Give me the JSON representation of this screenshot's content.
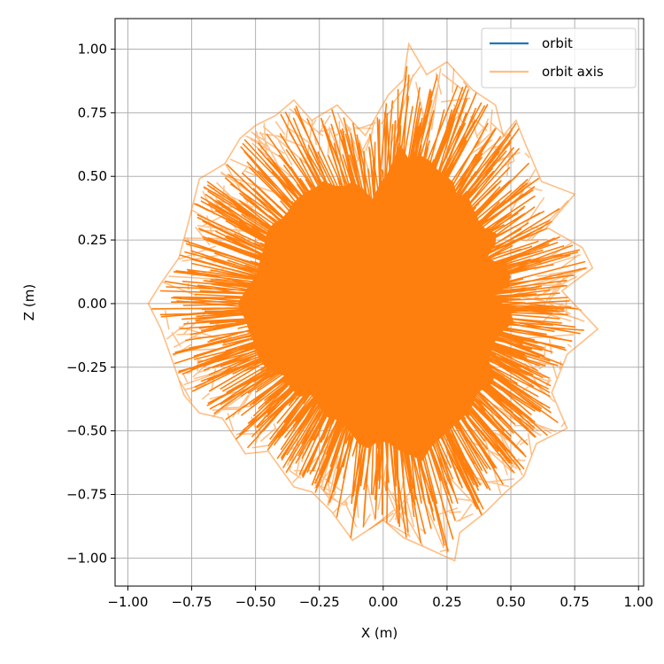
{
  "chart_data": {
    "type": "line",
    "xlabel": "X (m)",
    "ylabel": "Z (m)",
    "xlim": [
      -1.05,
      1.02
    ],
    "ylim": [
      -1.11,
      1.12
    ],
    "xticks": [
      -1.0,
      -0.75,
      -0.5,
      -0.25,
      0.0,
      0.25,
      0.5,
      0.75,
      1.0
    ],
    "xtick_labels": [
      "−1.00",
      "−0.75",
      "−0.50",
      "−0.25",
      "0.00",
      "0.25",
      "0.50",
      "0.75",
      "1.00"
    ],
    "yticks": [
      -1.0,
      -0.75,
      -0.5,
      -0.25,
      0.0,
      0.25,
      0.5,
      0.75,
      1.0
    ],
    "ytick_labels": [
      "−1.00",
      "−0.75",
      "−0.50",
      "−0.25",
      "0.00",
      "0.25",
      "0.50",
      "0.75",
      "1.00"
    ],
    "grid": true,
    "legend_position": "top-right",
    "series": [
      {
        "name": "orbit",
        "color": "#1f77b4",
        "values": []
      },
      {
        "name": "orbit axis",
        "color": "#ff7f0e",
        "opacity": 0.5,
        "values": []
      }
    ],
    "outline": [
      [
        -0.92,
        0.0
      ],
      [
        -0.87,
        0.08
      ],
      [
        -0.8,
        0.18
      ],
      [
        -0.76,
        0.33
      ],
      [
        -0.72,
        0.49
      ],
      [
        -0.62,
        0.55
      ],
      [
        -0.56,
        0.65
      ],
      [
        -0.5,
        0.7
      ],
      [
        -0.42,
        0.74
      ],
      [
        -0.35,
        0.8
      ],
      [
        -0.28,
        0.72
      ],
      [
        -0.18,
        0.78
      ],
      [
        -0.07,
        0.66
      ],
      [
        0.02,
        0.82
      ],
      [
        0.08,
        0.88
      ],
      [
        0.1,
        1.02
      ],
      [
        0.17,
        0.9
      ],
      [
        0.25,
        0.95
      ],
      [
        0.35,
        0.84
      ],
      [
        0.44,
        0.78
      ],
      [
        0.47,
        0.66
      ],
      [
        0.52,
        0.72
      ],
      [
        0.56,
        0.62
      ],
      [
        0.62,
        0.48
      ],
      [
        0.75,
        0.43
      ],
      [
        0.64,
        0.3
      ],
      [
        0.78,
        0.22
      ],
      [
        0.82,
        0.14
      ],
      [
        0.7,
        0.05
      ],
      [
        0.84,
        -0.1
      ],
      [
        0.72,
        -0.2
      ],
      [
        0.66,
        -0.35
      ],
      [
        0.72,
        -0.49
      ],
      [
        0.6,
        -0.55
      ],
      [
        0.55,
        -0.68
      ],
      [
        0.48,
        -0.74
      ],
      [
        0.4,
        -0.82
      ],
      [
        0.3,
        -0.9
      ],
      [
        0.28,
        -1.01
      ],
      [
        0.17,
        -0.96
      ],
      [
        0.08,
        -0.92
      ],
      [
        0.0,
        -0.85
      ],
      [
        -0.12,
        -0.93
      ],
      [
        -0.2,
        -0.82
      ],
      [
        -0.28,
        -0.74
      ],
      [
        -0.35,
        -0.72
      ],
      [
        -0.45,
        -0.58
      ],
      [
        -0.54,
        -0.59
      ],
      [
        -0.63,
        -0.45
      ],
      [
        -0.72,
        -0.43
      ],
      [
        -0.78,
        -0.36
      ],
      [
        -0.82,
        -0.24
      ],
      [
        -0.87,
        -0.1
      ]
    ]
  }
}
